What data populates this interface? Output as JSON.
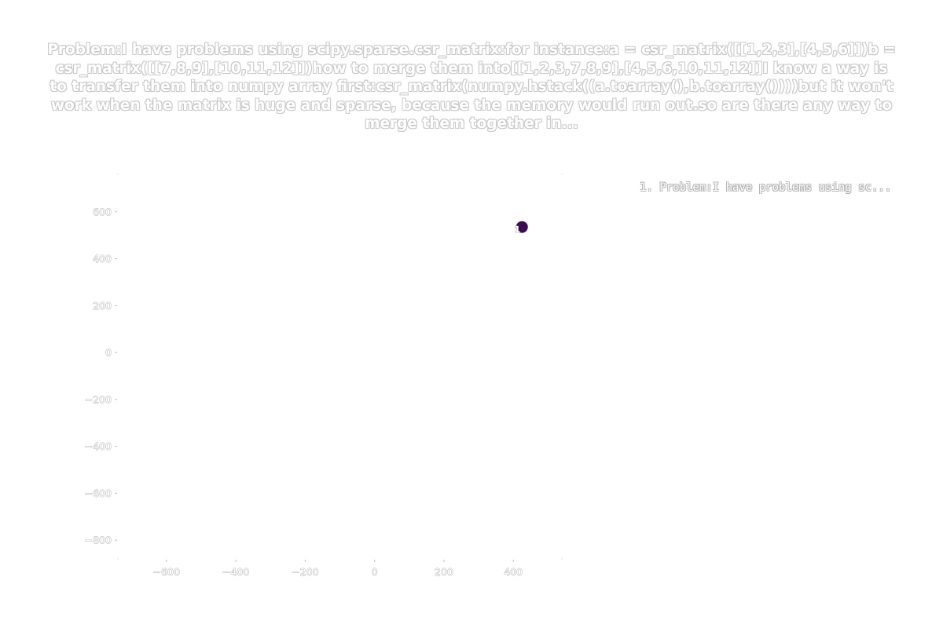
{
  "chart_data": {
    "type": "scatter",
    "title": "Problem:I have problems using scipy.sparse.csr_matrix:for instance:a = csr_matrix([[1,2,3],[4,5,6]])b = csr_matrix([[7,8,9],[10,11,12]])how to merge them into[[1,2,3,7,8,9],[4,5,6,10,11,12]]I know a way is to transfer them into numpy array first:csr_matrix(numpy.hstack((a.toarray(),b.toarray())))but it won't work when the matrix is huge and sparse, because the memory would run out.so are there any way to merge them together in...",
    "xlabel": "",
    "ylabel": "",
    "xlim": [
      -740,
      540
    ],
    "ylim": [
      -880,
      760
    ],
    "xticks": [
      -600,
      -400,
      -200,
      0,
      200,
      400
    ],
    "yticks": [
      600,
      400,
      200,
      0,
      -200,
      -400,
      -600,
      -800
    ],
    "xtick_labels": [
      "−600",
      "−400",
      "−200",
      "0",
      "200",
      "400"
    ],
    "ytick_labels": [
      "600",
      "400",
      "200",
      "0",
      "−200",
      "−400",
      "−600",
      "−800"
    ],
    "grid": false,
    "legend_position": "top-right",
    "legend_entries": [
      "1. Problem:I have problems using sc..."
    ],
    "points": [
      {
        "x": 425,
        "y": 535,
        "label": "1",
        "color": "#3b0f4f"
      }
    ]
  }
}
